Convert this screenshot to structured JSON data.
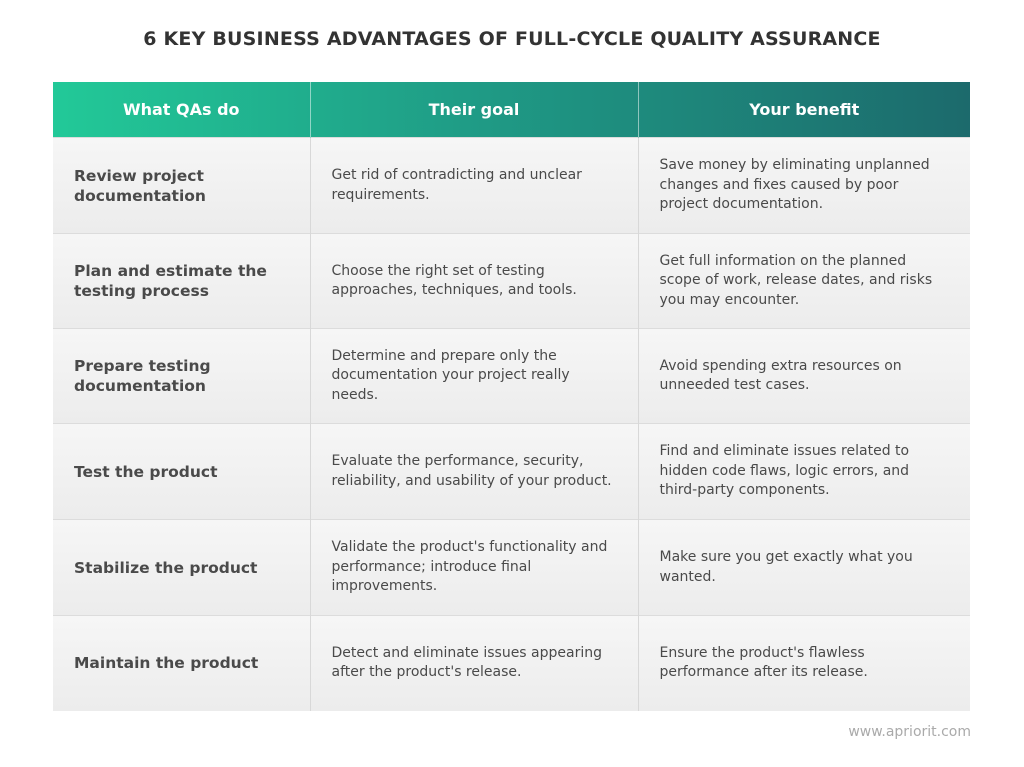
{
  "title": "6 KEY BUSINESS ADVANTAGES OF FULL-CYCLE QUALITY ASSURANCE",
  "table": {
    "header": [
      "What QAs do",
      "Their goal",
      "Your benefit"
    ],
    "rows": [
      [
        "Review project documentation",
        "Get rid of contradicting and unclear requirements.",
        "Save money by eliminating unplanned changes and fixes caused by poor project documentation."
      ],
      [
        "Plan and estimate the testing process",
        "Choose the right set of testing approaches, techniques, and tools.",
        "Get full information on the planned scope of work, release dates, and risks you may encounter."
      ],
      [
        "Prepare testing documentation",
        "Determine and prepare only the documentation your project really needs.",
        "Avoid spending extra resources on unneeded test cases."
      ],
      [
        "Test the product",
        "Evaluate the performance, security, reliability, and usability of your product.",
        "Find and eliminate issues related to hidden code flaws, logic errors, and third-party components."
      ],
      [
        "Stabilize the product",
        "Validate the product's functionality and performance; introduce final improvements.",
        "Make sure you get exactly what you wanted."
      ],
      [
        "Maintain the product",
        "Detect and eliminate issues appearing after the product's release.",
        "Ensure the product's flawless performance after its release."
      ]
    ]
  },
  "footer": "www.apriorit.com"
}
